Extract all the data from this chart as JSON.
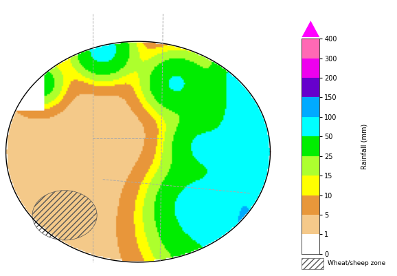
{
  "title": "",
  "colorbar_levels": [
    0,
    1,
    5,
    10,
    15,
    25,
    50,
    100,
    150,
    200,
    300,
    400
  ],
  "colorbar_colors": [
    "#ffffff",
    "#f5c98a",
    "#e8973a",
    "#e8973a",
    "#ffff00",
    "#adff2f",
    "#00ff00",
    "#00ffff",
    "#00bfff",
    "#8a2be2",
    "#ff00ff",
    "#ff69b4"
  ],
  "rainfall_colors": [
    "#ffffff",
    "#f5c070",
    "#e07820",
    "#ffff00",
    "#adff2f",
    "#00ee00",
    "#00ffff",
    "#00aaff",
    "#6600cc",
    "#ff00ff"
  ],
  "colorbar_label": "Rainfall (mm)",
  "legend_hatch_label": "Wheat/sheep zone",
  "figsize": [
    5.78,
    4.01
  ],
  "dpi": 100,
  "map_bg_color": "#ffffff",
  "australia_outline_color": "#000000",
  "state_border_color": "#aaaaaa",
  "wheat_sheep_hatch": "////",
  "wheat_sheep_hatch_color": "#888888",
  "colorbar_tick_labels": [
    "0",
    "1",
    "5",
    "10",
    "15",
    "25",
    "50",
    "100",
    "150",
    "200",
    "300",
    "400"
  ],
  "colorbar_segment_colors": [
    "#ffffff",
    "#f5c98a",
    "#e8973a",
    "#ffff00",
    "#adff2f",
    "#00ee00",
    "#00ffff",
    "#00aaff",
    "#6600cc",
    "#ee00ee",
    "#ff69b4"
  ],
  "arrow_color": "#ff00ff"
}
